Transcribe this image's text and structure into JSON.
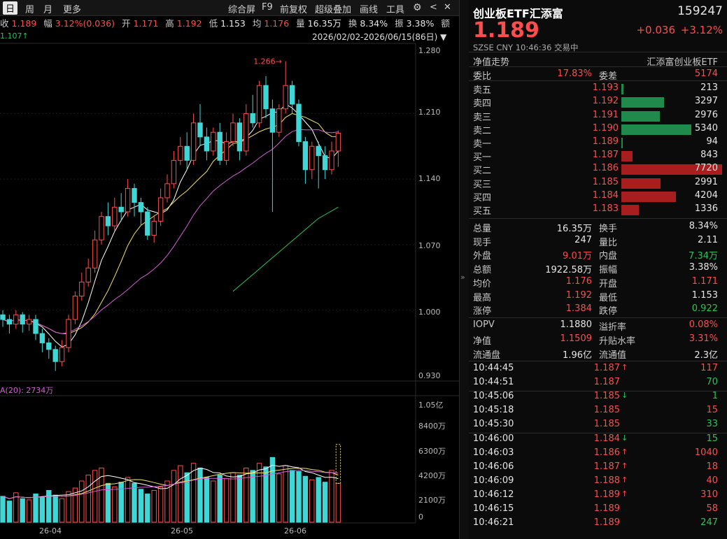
{
  "toolbar": {
    "period_tabs": [
      "日",
      "周",
      "月",
      "更多"
    ],
    "tools": [
      "综合屏",
      "F9",
      "前复权",
      "超级叠加",
      "画线",
      "工具"
    ]
  },
  "quote_bar": {
    "close_label": "收",
    "close": "1.189",
    "change_label": "幅",
    "change": "3.12%(0.036)",
    "open_label": "开",
    "open": "1.171",
    "high_label": "高",
    "high": "1.192",
    "low_label": "低",
    "low": "1.153",
    "avg_label": "均",
    "avg": "1.176",
    "volume_label": "量",
    "volume": "16.35万",
    "turnover_label": "换",
    "turnover": "8.34%",
    "amplitude_label": "振",
    "amplitude": "3.38%",
    "amount_label": "额"
  },
  "chart_header": {
    "range": "2026/02/02-2026/06/15(86日)",
    "indicator": "1.107↑",
    "peak_label": "1.266→"
  },
  "price_axis": [
    "1.280",
    "1.210",
    "1.140",
    "1.070",
    "1.000",
    "0.930"
  ],
  "volume_header": "A(20): 2734万",
  "volume_axis": [
    "1.05亿",
    "8400万",
    "6300万",
    "4200万",
    "2100万",
    "0"
  ],
  "date_axis": [
    "26-04",
    "26-05",
    "26-06"
  ],
  "colors": {
    "up": "#ff4d4d",
    "down": "#2ec25b",
    "cyan": "#3fd6d6",
    "ma5": "#ffffff",
    "ma10": "#f5e36a",
    "ma20": "#d45ed4",
    "ma60": "#2ec25b"
  },
  "chart_data": {
    "type": "candlestick",
    "ylim": [
      0.925,
      1.285
    ],
    "candles": [
      [
        0.995,
        0.99,
        1.0,
        0.982
      ],
      [
        0.99,
        0.985,
        0.995,
        0.975
      ],
      [
        0.985,
        0.995,
        1.0,
        0.98
      ],
      [
        0.995,
        0.985,
        0.998,
        0.976
      ],
      [
        0.985,
        0.99,
        0.995,
        0.978
      ],
      [
        0.99,
        0.975,
        0.995,
        0.968
      ],
      [
        0.975,
        0.965,
        0.98,
        0.955
      ],
      [
        0.965,
        0.958,
        0.97,
        0.948
      ],
      [
        0.958,
        0.945,
        0.962,
        0.935
      ],
      [
        0.945,
        0.96,
        0.968,
        0.94
      ],
      [
        0.96,
        0.99,
        0.995,
        0.955
      ],
      [
        0.99,
        1.015,
        1.02,
        0.985
      ],
      [
        1.015,
        1.03,
        1.04,
        1.01
      ],
      [
        1.03,
        1.045,
        1.055,
        1.025
      ],
      [
        1.045,
        1.075,
        1.085,
        1.04
      ],
      [
        1.075,
        1.1,
        1.105,
        1.07
      ],
      [
        1.1,
        1.09,
        1.115,
        1.08
      ],
      [
        1.09,
        1.11,
        1.12,
        1.085
      ],
      [
        1.11,
        1.105,
        1.125,
        1.095
      ],
      [
        1.105,
        1.13,
        1.14,
        1.1
      ],
      [
        1.13,
        1.115,
        1.135,
        1.1
      ],
      [
        1.115,
        1.105,
        1.12,
        1.09
      ],
      [
        1.105,
        1.08,
        1.11,
        1.075
      ],
      [
        1.08,
        1.095,
        1.1,
        1.072
      ],
      [
        1.095,
        1.12,
        1.13,
        1.09
      ],
      [
        1.12,
        1.135,
        1.145,
        1.115
      ],
      [
        1.135,
        1.16,
        1.17,
        1.13
      ],
      [
        1.16,
        1.175,
        1.185,
        1.155
      ],
      [
        1.175,
        1.16,
        1.19,
        1.15
      ],
      [
        1.16,
        1.2,
        1.21,
        1.155
      ],
      [
        1.2,
        1.185,
        1.22,
        1.175
      ],
      [
        1.185,
        1.17,
        1.195,
        1.16
      ],
      [
        1.17,
        1.19,
        1.195,
        1.165
      ],
      [
        1.19,
        1.16,
        1.2,
        1.155
      ],
      [
        1.16,
        1.18,
        1.19,
        1.155
      ],
      [
        1.18,
        1.2,
        1.21,
        1.175
      ],
      [
        1.2,
        1.17,
        1.205,
        1.16
      ],
      [
        1.17,
        1.21,
        1.22,
        1.165
      ],
      [
        1.21,
        1.2,
        1.23,
        1.195
      ],
      [
        1.2,
        1.24,
        1.245,
        1.195
      ],
      [
        1.24,
        1.215,
        1.25,
        1.205
      ],
      [
        1.215,
        1.19,
        1.225,
        1.105
      ],
      [
        1.19,
        1.215,
        1.22,
        1.185
      ],
      [
        1.215,
        1.24,
        1.266,
        1.21
      ],
      [
        1.24,
        1.22,
        1.245,
        1.21
      ],
      [
        1.22,
        1.18,
        1.225,
        1.175
      ],
      [
        1.18,
        1.15,
        1.185,
        1.135
      ],
      [
        1.15,
        1.175,
        1.18,
        1.14
      ],
      [
        1.175,
        1.165,
        1.18,
        1.13
      ],
      [
        1.165,
        1.15,
        1.175,
        1.14
      ],
      [
        1.15,
        1.17,
        1.18,
        1.145
      ],
      [
        1.17,
        1.189,
        1.192,
        1.153
      ]
    ],
    "ma60": [
      1.02,
      1.026,
      1.032,
      1.038,
      1.044,
      1.05,
      1.056,
      1.062,
      1.068,
      1.074,
      1.08,
      1.086,
      1.092,
      1.098,
      1.102,
      1.106,
      1.11
    ],
    "volumes": [
      22,
      18,
      25,
      20,
      19,
      24,
      21,
      27,
      23,
      20,
      26,
      29,
      35,
      40,
      44,
      46,
      33,
      30,
      34,
      38,
      33,
      28,
      24,
      27,
      30,
      35,
      44,
      48,
      42,
      50,
      46,
      38,
      35,
      40,
      37,
      42,
      40,
      46,
      44,
      50,
      47,
      55,
      41,
      48,
      44,
      43,
      39,
      36,
      38,
      34,
      44,
      33
    ]
  },
  "right": {
    "name": "创业板ETF汇添富",
    "code": "159247",
    "price": "1.189",
    "change": "+0.036",
    "change_pct": "+3.12%",
    "market": "SZSE",
    "currency": "CNY",
    "time": "10:46:36",
    "status": "交易中",
    "nav_tab": "净值走势",
    "issuer": "汇添富创业板ETF",
    "weibi_label": "委比",
    "weibi": "17.83%",
    "weicha_label": "委差",
    "weicha": "5174",
    "asks": [
      {
        "label": "卖五",
        "price": "1.193",
        "vol": "213",
        "w": 0.02
      },
      {
        "label": "卖四",
        "price": "1.192",
        "vol": "3297",
        "w": 0.427
      },
      {
        "label": "卖三",
        "price": "1.191",
        "vol": "2976",
        "w": 0.385
      },
      {
        "label": "卖二",
        "price": "1.190",
        "vol": "5340",
        "w": 0.692
      },
      {
        "label": "卖一",
        "price": "1.189",
        "vol": "94",
        "w": 0.012
      }
    ],
    "bids": [
      {
        "label": "买一",
        "price": "1.187",
        "vol": "843",
        "w": 0.109
      },
      {
        "label": "买二",
        "price": "1.186",
        "vol": "7720",
        "w": 1.0
      },
      {
        "label": "买三",
        "price": "1.185",
        "vol": "2991",
        "w": 0.387
      },
      {
        "label": "买四",
        "price": "1.184",
        "vol": "4204",
        "w": 0.545
      },
      {
        "label": "买五",
        "price": "1.183",
        "vol": "1336",
        "w": 0.173
      }
    ],
    "stats": [
      {
        "l1": "总量",
        "v1": "16.35万",
        "c1": "wt",
        "l2": "换手",
        "v2": "8.34%",
        "c2": "wt"
      },
      {
        "l1": "现手",
        "v1": "247",
        "c1": "wt",
        "l2": "量比",
        "v2": "2.11",
        "c2": "wt"
      },
      {
        "l1": "外盘",
        "v1": "9.01万",
        "c1": "up",
        "l2": "内盘",
        "v2": "7.34万",
        "c2": "dn"
      },
      {
        "l1": "总额",
        "v1": "1922.58万",
        "c1": "wt",
        "l2": "振幅",
        "v2": "3.38%",
        "c2": "wt"
      },
      {
        "l1": "均价",
        "v1": "1.176",
        "c1": "up",
        "l2": "开盘",
        "v2": "1.171",
        "c2": "up"
      },
      {
        "l1": "最高",
        "v1": "1.192",
        "c1": "up",
        "l2": "最低",
        "v2": "1.153",
        "c2": "wt"
      },
      {
        "l1": "涨停",
        "v1": "1.384",
        "c1": "up",
        "l2": "跌停",
        "v2": "0.922",
        "c2": "dn"
      }
    ],
    "stats2": [
      {
        "l1": "IOPV",
        "v1": "1.1880",
        "c1": "wt",
        "l2": "溢折率",
        "v2": "0.08%",
        "c2": "up"
      },
      {
        "l1": "净值",
        "v1": "1.1509",
        "c1": "up",
        "l2": "升贴水率",
        "v2": "3.31%",
        "c2": "up"
      },
      {
        "l1": "流通盘",
        "v1": "1.96亿",
        "c1": "wt",
        "l2": "流通值",
        "v2": "2.3亿",
        "c2": "wt"
      }
    ],
    "ticks": [
      {
        "t": "10:44:45",
        "p": "1.187",
        "a": "up",
        "v": "117",
        "vc": "up"
      },
      {
        "t": "10:44:51",
        "p": "1.187",
        "a": "",
        "v": "70",
        "vc": "dn"
      },
      {
        "t": "10:45:06",
        "p": "1.185",
        "a": "dn",
        "v": "1",
        "vc": "dn"
      },
      {
        "t": "10:45:18",
        "p": "1.185",
        "a": "",
        "v": "15",
        "vc": "up"
      },
      {
        "t": "10:45:30",
        "p": "1.185",
        "a": "",
        "v": "33",
        "vc": "dn"
      },
      {
        "t": "10:46:00",
        "p": "1.184",
        "a": "dn",
        "v": "15",
        "vc": "dn"
      },
      {
        "t": "10:46:03",
        "p": "1.186",
        "a": "up",
        "v": "1040",
        "vc": "up"
      },
      {
        "t": "10:46:06",
        "p": "1.187",
        "a": "up",
        "v": "18",
        "vc": "up"
      },
      {
        "t": "10:46:09",
        "p": "1.188",
        "a": "up",
        "v": "40",
        "vc": "up"
      },
      {
        "t": "10:46:12",
        "p": "1.189",
        "a": "up",
        "v": "310",
        "vc": "up"
      },
      {
        "t": "10:46:15",
        "p": "1.189",
        "a": "",
        "v": "58",
        "vc": "up"
      },
      {
        "t": "10:46:21",
        "p": "1.189",
        "a": "",
        "v": "247",
        "vc": "dn"
      }
    ]
  }
}
